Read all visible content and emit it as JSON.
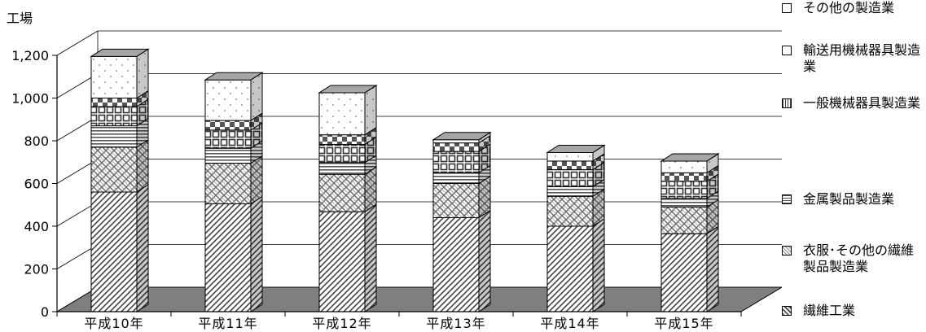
{
  "chart_data": {
    "type": "bar",
    "stacked": true,
    "style": "3d",
    "ylabel": "工場",
    "ylim": [
      0,
      1200
    ],
    "yticks": [
      "0",
      "200",
      "400",
      "600",
      "800",
      "1,000",
      "1,200"
    ],
    "categories": [
      "平成10年",
      "平成11年",
      "平成12年",
      "平成13年",
      "平成14年",
      "平成15年"
    ],
    "series": [
      {
        "name": "繊維工業",
        "values": [
          560,
          505,
          468,
          440,
          400,
          365
        ]
      },
      {
        "name": "衣服･その他の繊維製品製造業",
        "values": [
          210,
          190,
          175,
          160,
          140,
          125
        ]
      },
      {
        "name": "金属製品製造業",
        "values": [
          100,
          70,
          55,
          50,
          45,
          40
        ]
      },
      {
        "name": "一般機械器具製造業",
        "values": [
          90,
          85,
          85,
          100,
          80,
          80
        ]
      },
      {
        "name": "輸送用機械器具製造業",
        "values": [
          40,
          45,
          45,
          40,
          40,
          40
        ]
      },
      {
        "name": "その他の製造業",
        "values": [
          195,
          190,
          197,
          15,
          40,
          55
        ]
      }
    ],
    "legend_position": "right",
    "grid": true
  }
}
